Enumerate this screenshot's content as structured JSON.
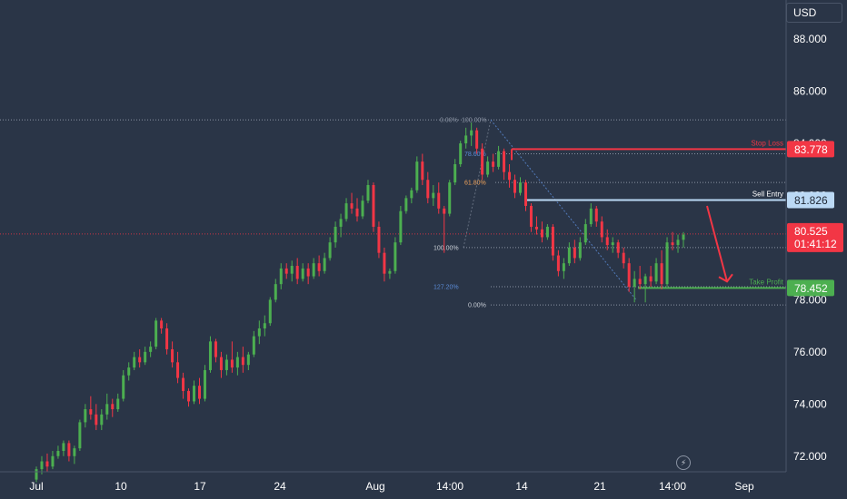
{
  "header": {
    "currency": "USD"
  },
  "chart_data": {
    "type": "candlestick",
    "x_tick_labels": [
      "Jul",
      "10",
      "17",
      "24",
      "Aug",
      "14:00",
      "14",
      "21",
      "14:00",
      "Sep"
    ],
    "y_ticks": [
      72,
      74,
      76,
      78,
      80,
      82,
      84,
      86,
      88
    ],
    "y_tick_labels": [
      "72.000",
      "74.000",
      "76.000",
      "78.000",
      "80.000",
      "82.000",
      "84.000",
      "86.000",
      "88.000"
    ],
    "ylim": [
      71.4,
      89.5
    ],
    "candles": [
      [
        71.1,
        71.6,
        71.0,
        71.5
      ],
      [
        71.5,
        72.0,
        71.3,
        71.8
      ],
      [
        71.8,
        72.1,
        71.4,
        71.6
      ],
      [
        71.6,
        72.2,
        71.5,
        72.0
      ],
      [
        72.0,
        72.4,
        71.9,
        72.2
      ],
      [
        72.2,
        72.6,
        72.0,
        72.5
      ],
      [
        72.5,
        72.6,
        71.8,
        72.0
      ],
      [
        72.0,
        72.4,
        71.7,
        72.3
      ],
      [
        72.3,
        73.4,
        72.2,
        73.3
      ],
      [
        73.3,
        74.0,
        73.1,
        73.8
      ],
      [
        73.8,
        74.3,
        73.4,
        73.6
      ],
      [
        73.6,
        74.0,
        73.0,
        73.2
      ],
      [
        73.2,
        73.8,
        73.0,
        73.6
      ],
      [
        73.6,
        74.4,
        73.4,
        74.0
      ],
      [
        74.0,
        74.2,
        73.5,
        73.8
      ],
      [
        73.8,
        74.4,
        73.7,
        74.2
      ],
      [
        74.2,
        75.3,
        74.1,
        75.1
      ],
      [
        75.1,
        75.6,
        74.9,
        75.4
      ],
      [
        75.4,
        76.0,
        75.3,
        75.8
      ],
      [
        75.8,
        76.1,
        75.4,
        75.6
      ],
      [
        75.6,
        76.2,
        75.5,
        76.0
      ],
      [
        76.0,
        76.4,
        75.8,
        76.2
      ],
      [
        76.2,
        77.3,
        76.1,
        77.2
      ],
      [
        77.2,
        77.3,
        76.7,
        76.9
      ],
      [
        76.9,
        77.1,
        75.9,
        76.1
      ],
      [
        76.1,
        76.4,
        75.4,
        75.6
      ],
      [
        75.6,
        76.0,
        74.8,
        75.0
      ],
      [
        75.0,
        75.2,
        74.2,
        74.5
      ],
      [
        74.5,
        74.6,
        73.9,
        74.1
      ],
      [
        74.1,
        74.9,
        74.0,
        74.7
      ],
      [
        74.7,
        75.0,
        74.0,
        74.2
      ],
      [
        74.2,
        75.5,
        74.1,
        75.3
      ],
      [
        75.3,
        76.6,
        75.2,
        76.4
      ],
      [
        76.4,
        76.5,
        75.6,
        75.8
      ],
      [
        75.8,
        76.0,
        75.0,
        75.3
      ],
      [
        75.3,
        75.9,
        75.1,
        75.7
      ],
      [
        75.7,
        76.4,
        75.2,
        75.4
      ],
      [
        75.4,
        76.0,
        75.1,
        75.8
      ],
      [
        75.8,
        76.2,
        75.2,
        75.5
      ],
      [
        75.5,
        76.0,
        75.3,
        75.9
      ],
      [
        75.9,
        76.8,
        75.8,
        76.6
      ],
      [
        76.6,
        77.2,
        76.3,
        76.9
      ],
      [
        76.9,
        77.4,
        76.6,
        77.1
      ],
      [
        77.1,
        78.1,
        77.0,
        78.0
      ],
      [
        78.0,
        78.8,
        77.9,
        78.6
      ],
      [
        78.6,
        79.4,
        78.4,
        79.2
      ],
      [
        79.2,
        79.4,
        78.8,
        79.0
      ],
      [
        79.0,
        79.5,
        78.7,
        79.3
      ],
      [
        79.3,
        79.6,
        78.6,
        78.8
      ],
      [
        78.8,
        79.4,
        78.7,
        79.2
      ],
      [
        79.2,
        79.4,
        78.6,
        78.9
      ],
      [
        78.9,
        79.6,
        78.8,
        79.4
      ],
      [
        79.4,
        79.7,
        78.9,
        79.1
      ],
      [
        79.1,
        79.8,
        79.0,
        79.6
      ],
      [
        79.6,
        80.4,
        79.5,
        80.2
      ],
      [
        80.2,
        81.0,
        80.0,
        80.8
      ],
      [
        80.8,
        81.3,
        80.4,
        81.1
      ],
      [
        81.1,
        81.9,
        81.0,
        81.7
      ],
      [
        81.7,
        82.1,
        81.3,
        81.5
      ],
      [
        81.5,
        81.9,
        81.0,
        81.2
      ],
      [
        81.2,
        82.0,
        81.1,
        81.8
      ],
      [
        81.8,
        82.6,
        81.7,
        82.4
      ],
      [
        82.4,
        82.5,
        80.6,
        80.8
      ],
      [
        80.8,
        81.0,
        79.6,
        79.8
      ],
      [
        79.8,
        80.0,
        78.7,
        79.0
      ],
      [
        79.0,
        79.2,
        78.8,
        79.1
      ],
      [
        79.1,
        80.4,
        79.0,
        80.2
      ],
      [
        80.2,
        81.6,
        80.1,
        81.4
      ],
      [
        81.4,
        82.0,
        81.3,
        81.9
      ],
      [
        81.9,
        82.3,
        81.7,
        82.2
      ],
      [
        82.2,
        83.5,
        82.1,
        83.3
      ],
      [
        83.3,
        83.6,
        82.4,
        82.6
      ],
      [
        82.6,
        82.9,
        81.7,
        81.9
      ],
      [
        81.9,
        82.4,
        81.6,
        82.1
      ],
      [
        82.1,
        82.5,
        81.3,
        81.5
      ],
      [
        81.5,
        81.6,
        79.8,
        81.3
      ],
      [
        81.3,
        82.6,
        81.2,
        82.5
      ],
      [
        82.5,
        83.4,
        82.4,
        83.2
      ],
      [
        83.2,
        84.1,
        83.1,
        84.0
      ],
      [
        84.0,
        84.6,
        83.8,
        84.3
      ],
      [
        84.3,
        84.8,
        83.9,
        84.5
      ],
      [
        84.5,
        84.6,
        83.6,
        83.8
      ],
      [
        83.8,
        84.0,
        82.6,
        82.8
      ],
      [
        82.8,
        83.5,
        82.7,
        83.3
      ],
      [
        83.3,
        83.6,
        82.9,
        83.1
      ],
      [
        83.1,
        83.9,
        83.0,
        83.7
      ],
      [
        83.7,
        83.8,
        82.6,
        82.9
      ],
      [
        82.9,
        83.2,
        82.3,
        82.6
      ],
      [
        82.6,
        82.8,
        81.9,
        82.1
      ],
      [
        82.1,
        82.7,
        82.0,
        82.5
      ],
      [
        82.5,
        82.6,
        81.4,
        81.6
      ],
      [
        81.6,
        81.7,
        80.6,
        80.8
      ],
      [
        80.8,
        81.2,
        80.5,
        80.7
      ],
      [
        80.7,
        81.0,
        80.2,
        80.4
      ],
      [
        80.4,
        80.9,
        80.3,
        80.8
      ],
      [
        80.8,
        80.9,
        79.5,
        79.7
      ],
      [
        79.7,
        79.9,
        78.9,
        79.1
      ],
      [
        79.1,
        79.6,
        78.8,
        79.4
      ],
      [
        79.4,
        80.2,
        79.3,
        80.0
      ],
      [
        80.0,
        80.3,
        79.4,
        79.6
      ],
      [
        79.6,
        80.4,
        79.5,
        80.2
      ],
      [
        80.2,
        81.1,
        80.1,
        80.9
      ],
      [
        80.9,
        81.7,
        80.8,
        81.5
      ],
      [
        81.5,
        81.6,
        80.8,
        81.0
      ],
      [
        81.0,
        81.2,
        80.2,
        80.4
      ],
      [
        80.4,
        80.7,
        79.9,
        80.1
      ],
      [
        80.1,
        80.4,
        79.8,
        80.2
      ],
      [
        80.2,
        80.3,
        79.6,
        79.8
      ],
      [
        79.8,
        80.0,
        79.2,
        79.4
      ],
      [
        79.4,
        79.6,
        78.3,
        78.5
      ],
      [
        78.5,
        79.1,
        77.9,
        78.8
      ],
      [
        78.8,
        79.3,
        78.4,
        78.6
      ],
      [
        78.6,
        79.0,
        77.9,
        78.9
      ],
      [
        78.9,
        79.3,
        78.5,
        78.7
      ],
      [
        78.7,
        79.6,
        78.6,
        79.4
      ],
      [
        79.4,
        79.9,
        78.4,
        78.6
      ],
      [
        78.6,
        80.4,
        78.5,
        80.2
      ],
      [
        80.2,
        80.6,
        79.9,
        80.1
      ],
      [
        80.1,
        80.5,
        79.8,
        80.3
      ],
      [
        80.3,
        80.6,
        80.0,
        80.5
      ]
    ],
    "colors": {
      "up": "#4caf50",
      "down": "#f23645"
    },
    "fib_upper": {
      "levels": [
        {
          "label": "0.00%",
          "price": 84.9
        },
        {
          "label": "100.00%",
          "price": 84.9
        },
        {
          "label": "78.60%",
          "price": 83.6
        },
        {
          "label": "61.80%",
          "price": 82.5
        },
        {
          "label": "100.00%",
          "price": 80.0
        }
      ]
    },
    "fib_lower": {
      "levels": [
        {
          "label": "127.20%",
          "price": 78.5
        },
        {
          "label": "0.00%",
          "price": 77.8
        }
      ]
    },
    "annotations": [
      {
        "label": "Stop Loss",
        "price": 83.778,
        "color": "#f23645",
        "tag": "83.778"
      },
      {
        "label": "Sell Entry",
        "price": 81.826,
        "color": "#bbd9f5",
        "tag": "81.826"
      },
      {
        "label": "Take Profit",
        "price": 78.452,
        "color": "#4caf50",
        "tag": "78.452"
      }
    ],
    "current_price": {
      "price": 80.525,
      "tag": "80.525",
      "countdown": "01:41:12",
      "color": "#f23645"
    }
  }
}
